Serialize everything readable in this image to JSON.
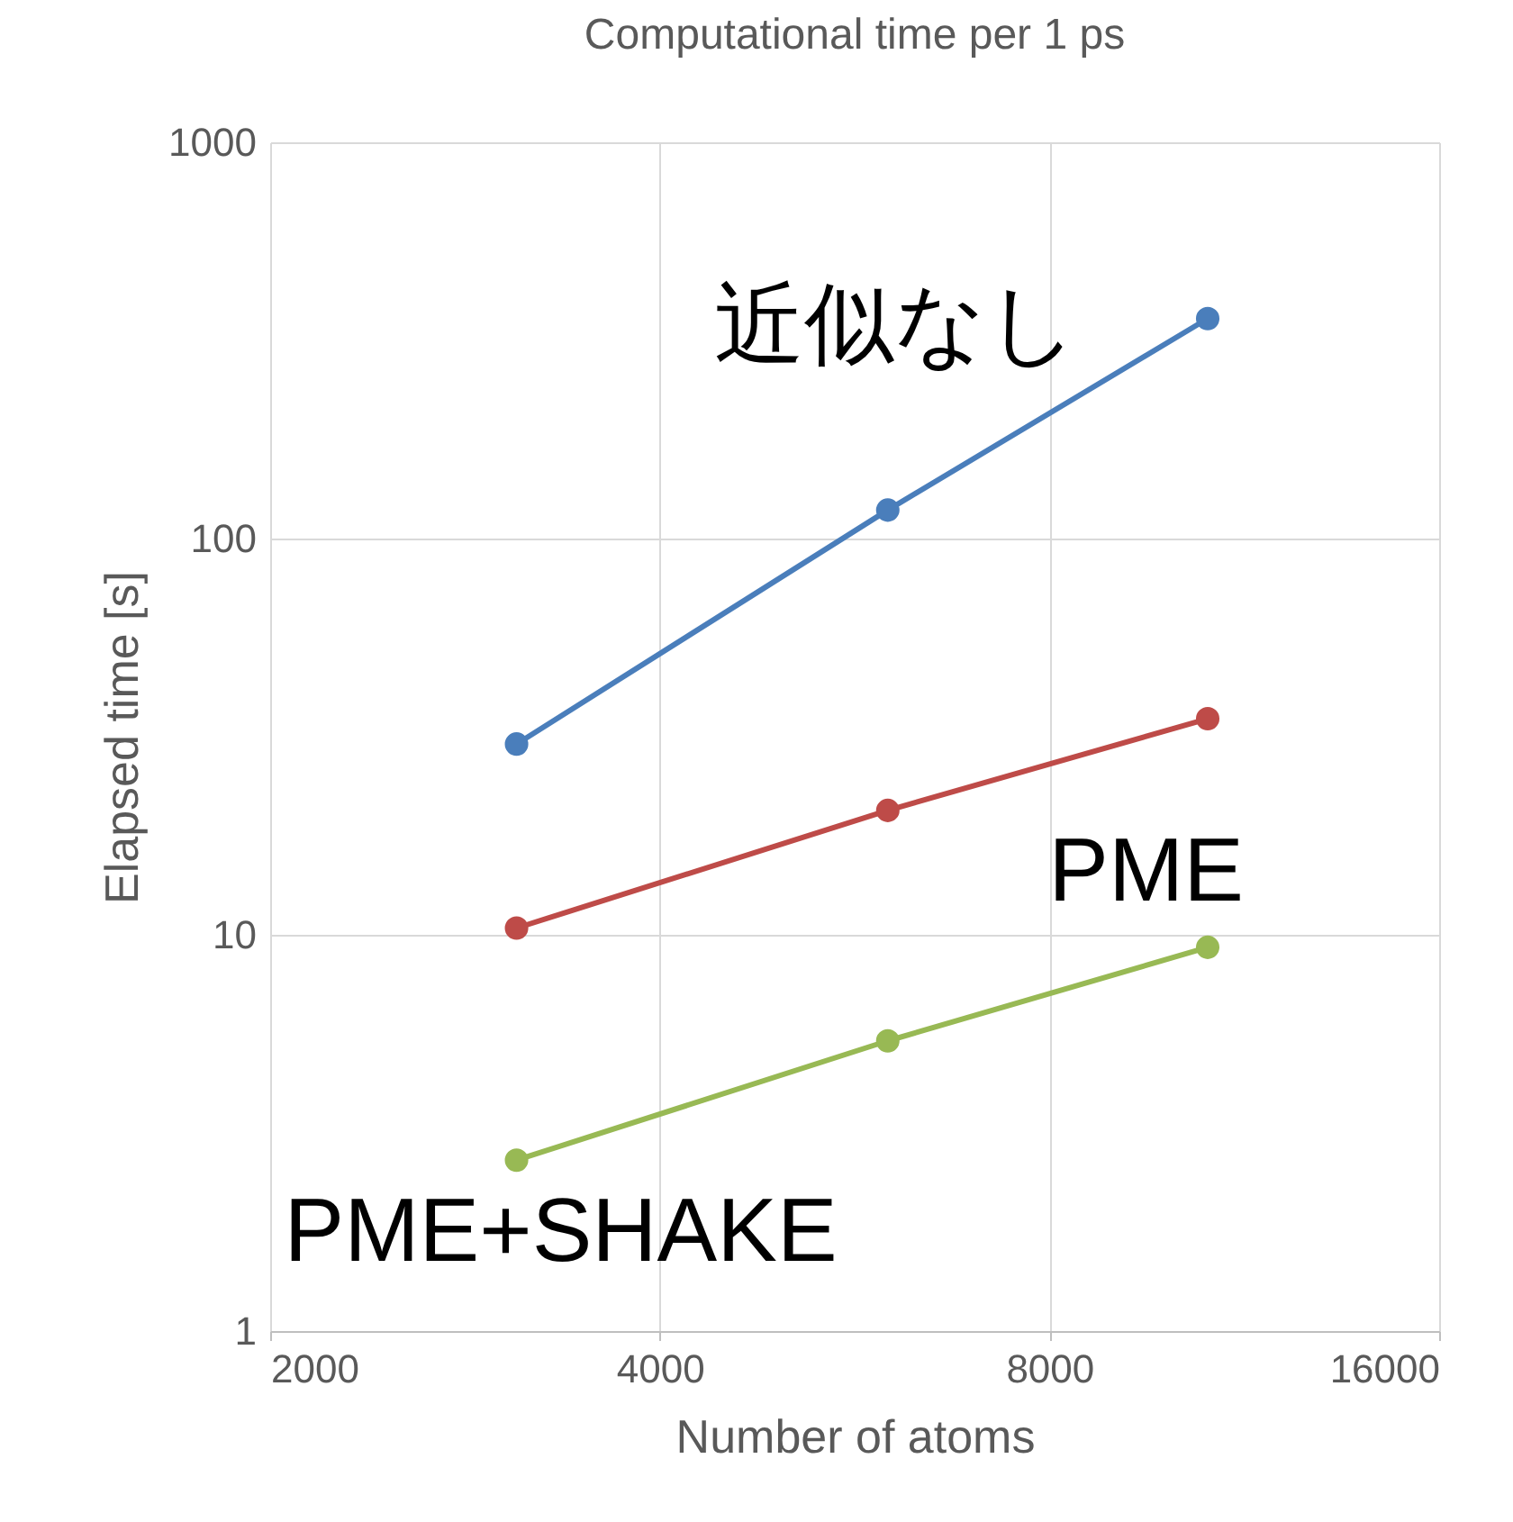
{
  "chart_data": {
    "type": "line",
    "title": "Computational time per 1 ps",
    "xlabel": "Number of atoms",
    "ylabel": "Elapsed time [s]",
    "log": "xy",
    "x": [
      3100,
      6000,
      10600
    ],
    "series": [
      {
        "name": "近似なし",
        "color": "#4a7ebb",
        "values": [
          30.3,
          118,
          359
        ]
      },
      {
        "name": "PME",
        "color": "#be4b48",
        "values": [
          10.4,
          20.6,
          35.1
        ]
      },
      {
        "name": "PME+SHAKE",
        "color": "#98b954",
        "values": [
          2.7,
          5.4,
          9.3
        ]
      }
    ],
    "xlim": [
      2000,
      16000
    ],
    "xticks": [
      2000,
      4000,
      8000,
      16000
    ],
    "ylim": [
      1,
      1000
    ],
    "yticks": [
      1,
      10,
      100,
      1000
    ],
    "grid": true,
    "marker": "circle",
    "line_style": "solid",
    "legend": false
  }
}
